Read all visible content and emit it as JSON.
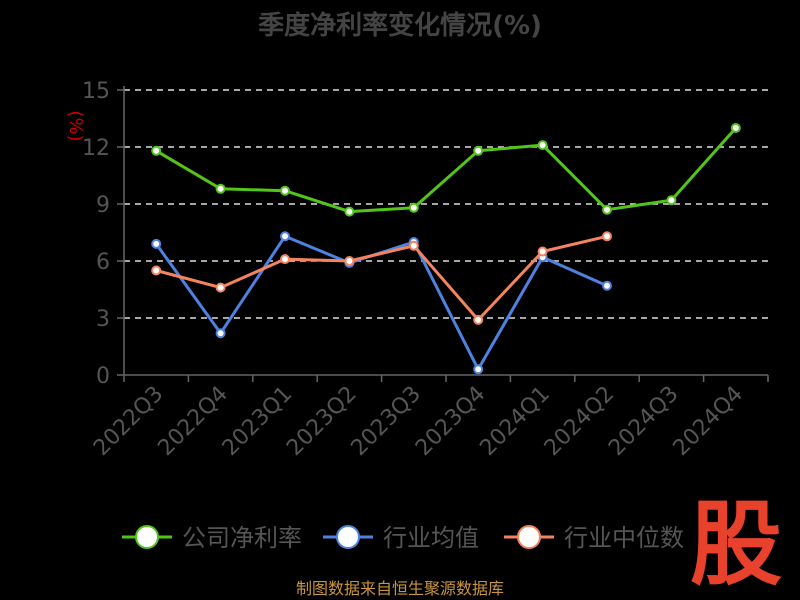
{
  "chart_data": {
    "type": "line",
    "title": "季度净利率变化情况(%)",
    "ylabel": "(%)",
    "categories": [
      "2022Q3",
      "2022Q4",
      "2023Q1",
      "2023Q2",
      "2023Q3",
      "2023Q4",
      "2024Q1",
      "2024Q2",
      "2024Q3",
      "2024Q4"
    ],
    "yticks": [
      "0",
      "3",
      "6",
      "9",
      "12",
      "15"
    ],
    "ylim": [
      0,
      15
    ],
    "grid": true,
    "legend_position": "bottom",
    "series": [
      {
        "name": "公司净利率",
        "color": "#52c41a",
        "values": [
          11.8,
          9.8,
          9.7,
          8.6,
          8.8,
          11.8,
          12.1,
          8.7,
          9.2,
          13.0
        ]
      },
      {
        "name": "行业均值",
        "color": "#4e82e0",
        "values": [
          6.9,
          2.2,
          7.3,
          5.9,
          7.0,
          0.3,
          6.2,
          4.7,
          null,
          null
        ]
      },
      {
        "name": "行业中位数",
        "color": "#f4845f",
        "values": [
          5.5,
          4.6,
          6.1,
          6.0,
          6.8,
          2.9,
          6.5,
          7.3,
          null,
          null
        ]
      }
    ]
  },
  "source_text": "制图数据来自恒生聚源数据库",
  "watermark_text": "股"
}
